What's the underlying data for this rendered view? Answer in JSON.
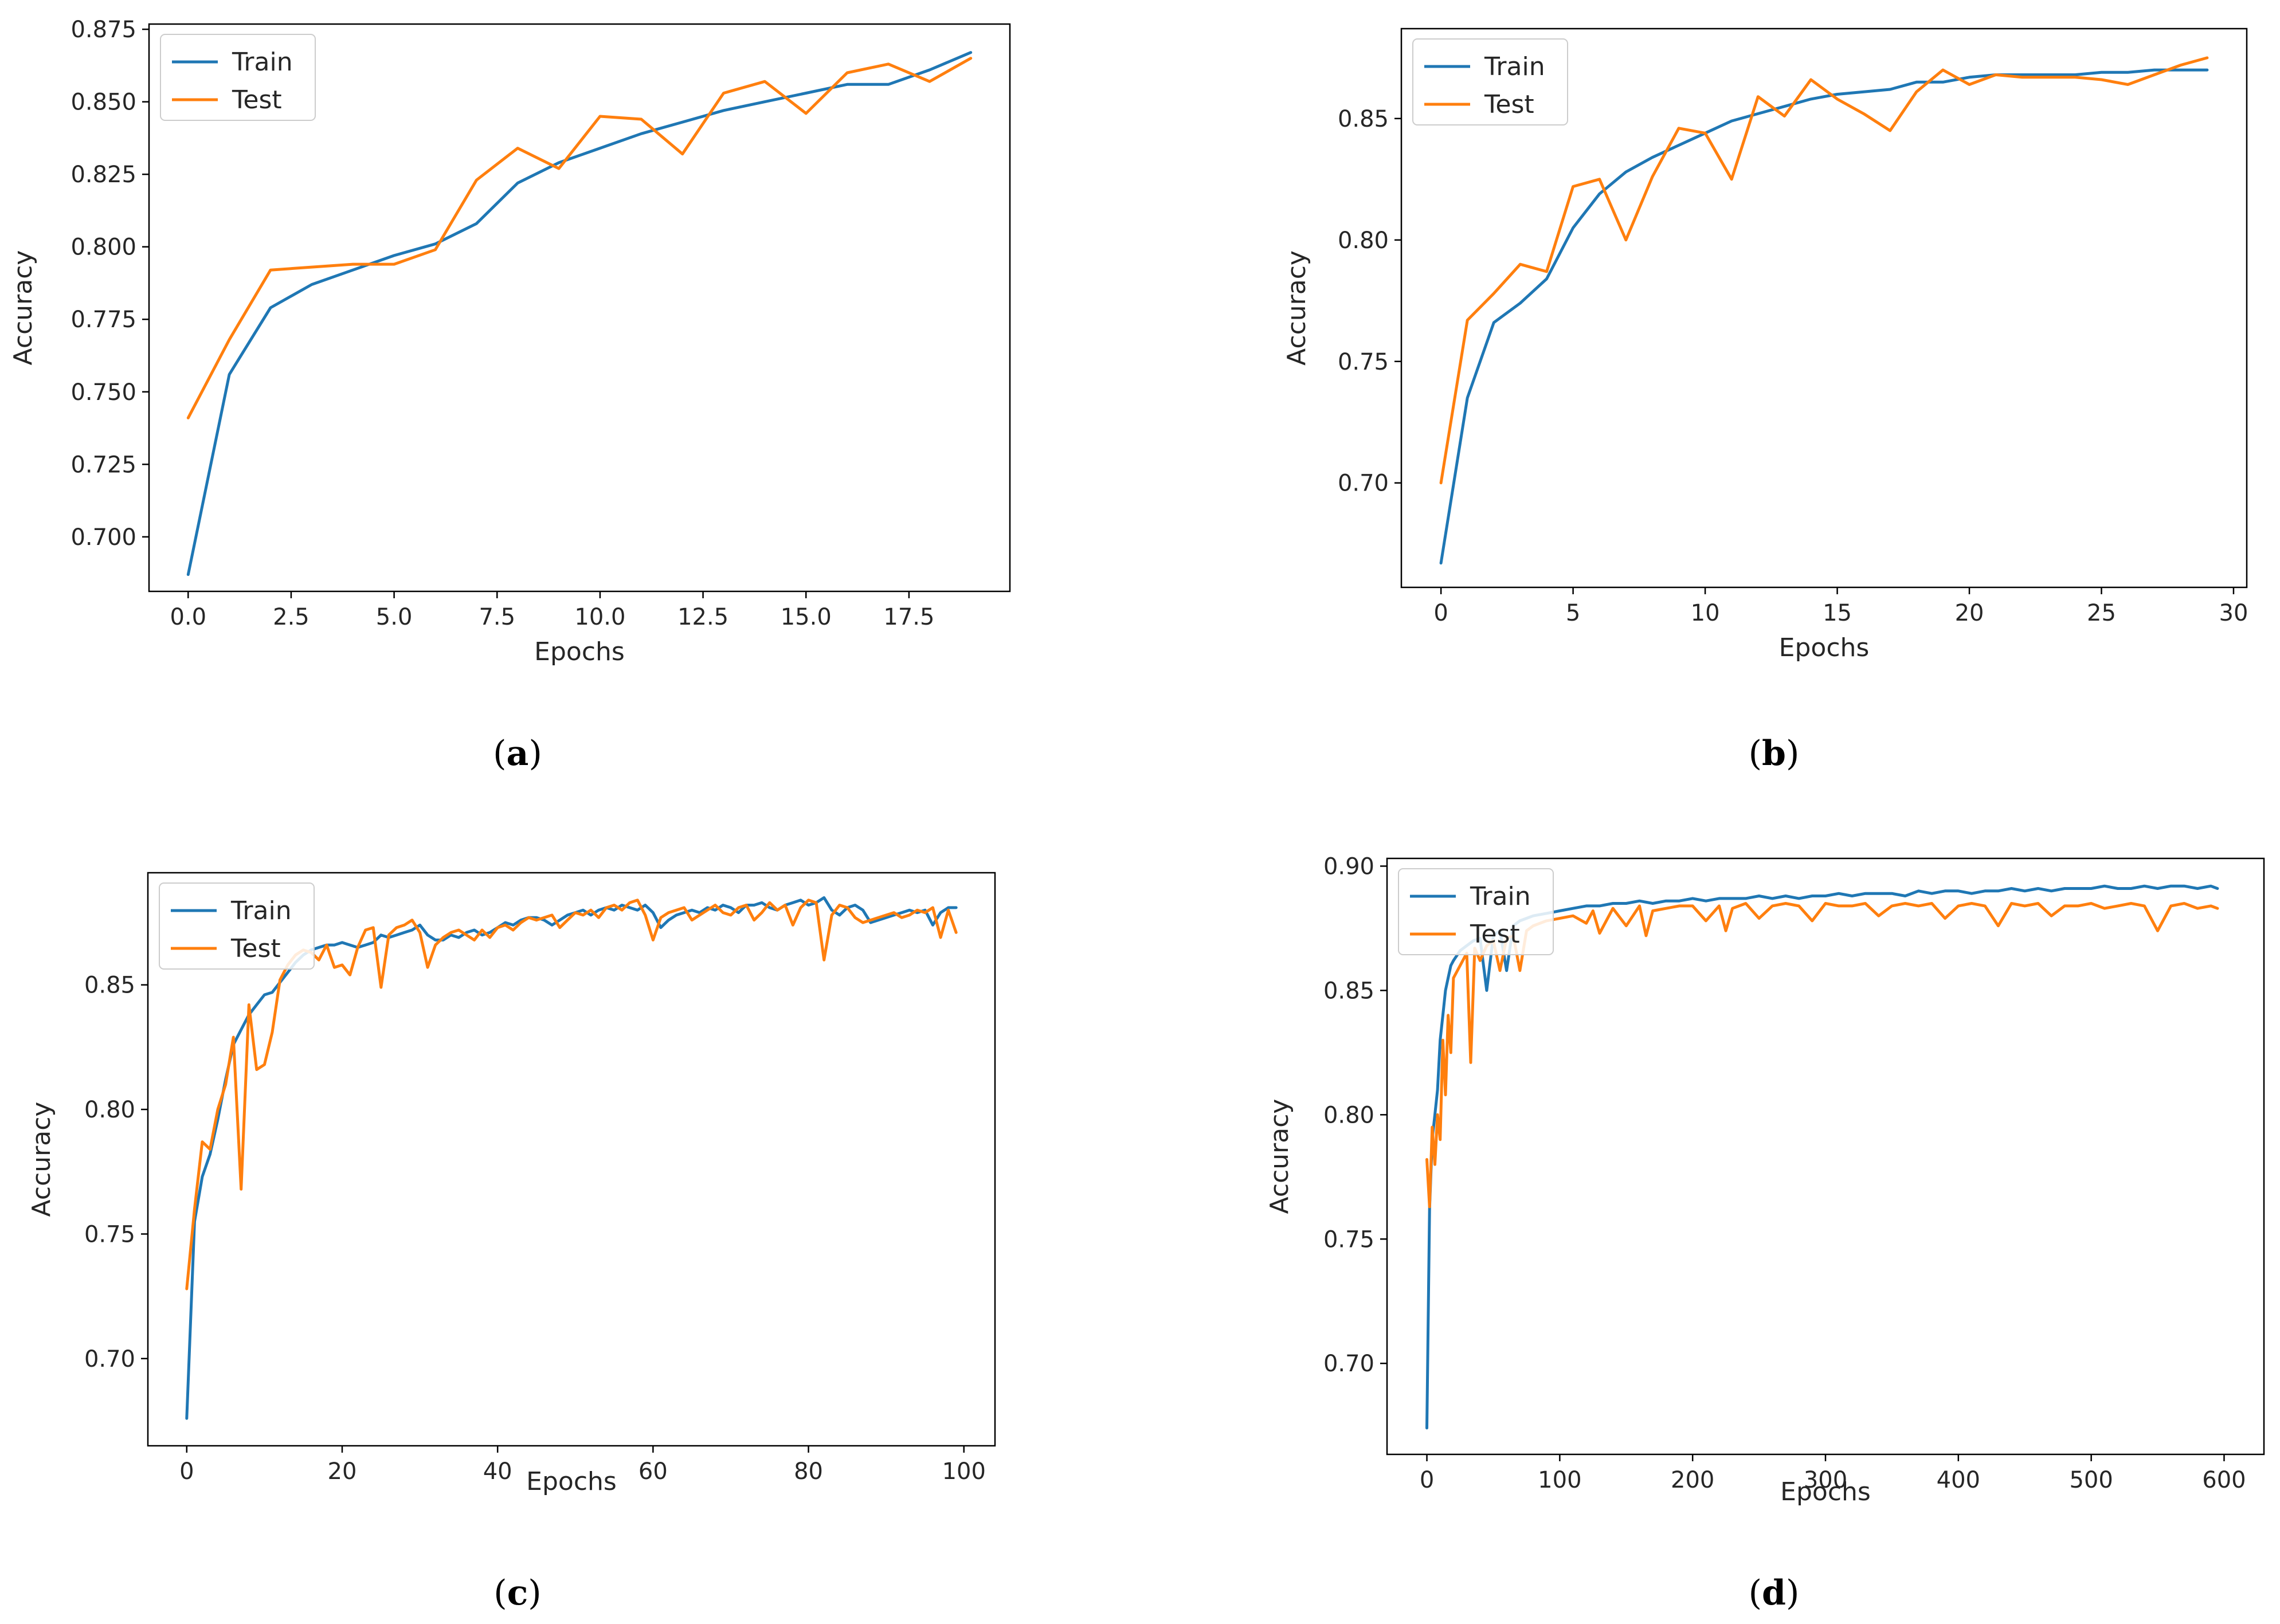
{
  "colors": {
    "train": "#1f77b4",
    "test": "#ff7f0e"
  },
  "chart_data": [
    {
      "id": "a",
      "caption": "a",
      "type": "line",
      "xlabel": "Epochs",
      "ylabel": "Accuracy",
      "xlim": [
        -0.95,
        19.95
      ],
      "ylim": [
        0.6812,
        0.8768
      ],
      "xticks": [
        0.0,
        2.5,
        5.0,
        7.5,
        10.0,
        12.5,
        15.0,
        17.5
      ],
      "xtick_labels": [
        "0.0",
        "2.5",
        "5.0",
        "7.5",
        "10.0",
        "12.5",
        "15.0",
        "17.5"
      ],
      "yticks": [
        0.7,
        0.725,
        0.75,
        0.775,
        0.8,
        0.825,
        0.85,
        0.875
      ],
      "ytick_labels": [
        "0.700",
        "0.725",
        "0.750",
        "0.775",
        "0.800",
        "0.825",
        "0.850",
        "0.875"
      ],
      "legend_placement": "upper-left",
      "series": [
        {
          "name": "Train",
          "color_key": "train",
          "values": [
            0.687,
            0.756,
            0.779,
            0.787,
            0.792,
            0.797,
            0.801,
            0.808,
            0.822,
            0.829,
            0.834,
            0.839,
            0.843,
            0.847,
            0.85,
            0.853,
            0.856,
            0.856,
            0.861,
            0.867
          ]
        },
        {
          "name": "Test",
          "color_key": "test",
          "values": [
            0.741,
            0.768,
            0.792,
            0.793,
            0.794,
            0.794,
            0.799,
            0.823,
            0.834,
            0.827,
            0.845,
            0.844,
            0.832,
            0.853,
            0.857,
            0.846,
            0.86,
            0.863,
            0.857,
            0.865
          ]
        }
      ]
    },
    {
      "id": "b",
      "caption": "b",
      "type": "line",
      "xlabel": "Epochs",
      "ylabel": "Accuracy",
      "xlim": [
        -1.5,
        30.5
      ],
      "ylim": [
        0.657,
        0.887
      ],
      "xticks": [
        0,
        5,
        10,
        15,
        20,
        25,
        30
      ],
      "xtick_labels": [
        "0",
        "5",
        "10",
        "15",
        "20",
        "25",
        "30"
      ],
      "yticks": [
        0.7,
        0.75,
        0.8,
        0.85
      ],
      "ytick_labels": [
        "0.70",
        "0.75",
        "0.80",
        "0.85"
      ],
      "legend_placement": "upper-left",
      "series": [
        {
          "name": "Train",
          "color_key": "train",
          "values": [
            0.667,
            0.735,
            0.766,
            0.774,
            0.784,
            0.805,
            0.819,
            0.828,
            0.834,
            0.839,
            0.844,
            0.849,
            0.852,
            0.855,
            0.858,
            0.86,
            0.861,
            0.862,
            0.865,
            0.865,
            0.867,
            0.868,
            0.868,
            0.868,
            0.868,
            0.869,
            0.869,
            0.87,
            0.87,
            0.87
          ]
        },
        {
          "name": "Test",
          "color_key": "test",
          "values": [
            0.7,
            0.767,
            0.778,
            0.79,
            0.787,
            0.822,
            0.825,
            0.8,
            0.826,
            0.846,
            0.844,
            0.825,
            0.859,
            0.851,
            0.866,
            0.858,
            0.852,
            0.845,
            0.861,
            0.87,
            0.864,
            0.868,
            0.867,
            0.867,
            0.867,
            0.866,
            0.864,
            0.868,
            0.872,
            0.875
          ]
        }
      ]
    },
    {
      "id": "c",
      "caption": "c",
      "type": "line",
      "xlabel": "Epochs",
      "ylabel": "Accuracy",
      "xlim": [
        -5,
        104
      ],
      "ylim": [
        0.665,
        0.895
      ],
      "xticks": [
        0,
        20,
        40,
        60,
        80,
        100
      ],
      "xtick_labels": [
        "0",
        "20",
        "40",
        "60",
        "80",
        "100"
      ],
      "yticks": [
        0.7,
        0.75,
        0.8,
        0.85
      ],
      "ytick_labels": [
        "0.70",
        "0.75",
        "0.80",
        "0.85"
      ],
      "legend_placement": "upper-left",
      "series": [
        {
          "name": "Train",
          "color_key": "train",
          "values": [
            0.676,
            0.755,
            0.773,
            0.782,
            0.796,
            0.812,
            0.826,
            0.832,
            0.838,
            0.842,
            0.846,
            0.847,
            0.851,
            0.855,
            0.859,
            0.862,
            0.864,
            0.865,
            0.866,
            0.866,
            0.867,
            0.866,
            0.865,
            0.866,
            0.867,
            0.87,
            0.869,
            0.87,
            0.871,
            0.872,
            0.874,
            0.87,
            0.868,
            0.868,
            0.87,
            0.869,
            0.871,
            0.872,
            0.87,
            0.871,
            0.873,
            0.875,
            0.874,
            0.876,
            0.877,
            0.877,
            0.876,
            0.874,
            0.876,
            0.878,
            0.879,
            0.88,
            0.878,
            0.88,
            0.881,
            0.88,
            0.882,
            0.881,
            0.88,
            0.882,
            0.879,
            0.873,
            0.876,
            0.878,
            0.879,
            0.88,
            0.879,
            0.881,
            0.88,
            0.882,
            0.881,
            0.879,
            0.882,
            0.882,
            0.883,
            0.881,
            0.88,
            0.882,
            0.883,
            0.884,
            0.882,
            0.883,
            0.885,
            0.88,
            0.878,
            0.881,
            0.882,
            0.88,
            0.875,
            0.876,
            0.877,
            0.878,
            0.879,
            0.88,
            0.879,
            0.88,
            0.874,
            0.879,
            0.881,
            0.881
          ]
        },
        {
          "name": "Test",
          "color_key": "test",
          "values": [
            0.728,
            0.76,
            0.787,
            0.784,
            0.8,
            0.81,
            0.829,
            0.768,
            0.842,
            0.816,
            0.818,
            0.831,
            0.852,
            0.858,
            0.862,
            0.864,
            0.863,
            0.86,
            0.866,
            0.857,
            0.858,
            0.854,
            0.865,
            0.872,
            0.873,
            0.849,
            0.87,
            0.873,
            0.874,
            0.876,
            0.871,
            0.857,
            0.866,
            0.869,
            0.871,
            0.872,
            0.87,
            0.868,
            0.872,
            0.869,
            0.873,
            0.874,
            0.872,
            0.875,
            0.877,
            0.876,
            0.877,
            0.878,
            0.873,
            0.876,
            0.879,
            0.878,
            0.88,
            0.877,
            0.881,
            0.882,
            0.88,
            0.883,
            0.884,
            0.878,
            0.868,
            0.877,
            0.879,
            0.88,
            0.881,
            0.876,
            0.878,
            0.88,
            0.882,
            0.879,
            0.878,
            0.881,
            0.882,
            0.876,
            0.879,
            0.883,
            0.88,
            0.882,
            0.874,
            0.881,
            0.884,
            0.883,
            0.86,
            0.878,
            0.882,
            0.881,
            0.877,
            0.875,
            0.876,
            0.877,
            0.878,
            0.879,
            0.877,
            0.878,
            0.88,
            0.879,
            0.881,
            0.869,
            0.88,
            0.871
          ]
        }
      ]
    },
    {
      "id": "d",
      "caption": "d",
      "type": "line",
      "xlabel": "Epochs",
      "ylabel": "Accuracy",
      "xlim": [
        -30,
        630
      ],
      "ylim": [
        0.6634,
        0.9031
      ],
      "xticks": [
        0,
        100,
        200,
        300,
        400,
        500,
        600
      ],
      "xtick_labels": [
        "0",
        "100",
        "200",
        "300",
        "400",
        "500",
        "600"
      ],
      "yticks": [
        0.7,
        0.75,
        0.8,
        0.85,
        0.9
      ],
      "ytick_labels": [
        "0.70",
        "0.75",
        "0.80",
        "0.85",
        "0.90"
      ],
      "legend_placement": "upper-left",
      "series": [
        {
          "name": "Train",
          "color_key": "train",
          "x": [
            0,
            2,
            4,
            6,
            8,
            10,
            12,
            14,
            16,
            18,
            20,
            25,
            30,
            35,
            40,
            45,
            50,
            55,
            60,
            65,
            70,
            80,
            90,
            100,
            110,
            120,
            130,
            140,
            150,
            160,
            170,
            180,
            190,
            200,
            210,
            220,
            230,
            240,
            250,
            260,
            270,
            280,
            290,
            300,
            310,
            320,
            330,
            340,
            350,
            360,
            370,
            380,
            390,
            400,
            410,
            420,
            430,
            440,
            450,
            460,
            470,
            480,
            490,
            500,
            510,
            520,
            530,
            540,
            550,
            560,
            570,
            580,
            590,
            595
          ],
          "values": [
            0.674,
            0.762,
            0.79,
            0.8,
            0.81,
            0.83,
            0.84,
            0.85,
            0.855,
            0.86,
            0.862,
            0.866,
            0.868,
            0.87,
            0.871,
            0.85,
            0.872,
            0.874,
            0.858,
            0.876,
            0.878,
            0.88,
            0.881,
            0.882,
            0.883,
            0.884,
            0.884,
            0.885,
            0.885,
            0.886,
            0.885,
            0.886,
            0.886,
            0.887,
            0.886,
            0.887,
            0.887,
            0.887,
            0.888,
            0.887,
            0.888,
            0.887,
            0.888,
            0.888,
            0.889,
            0.888,
            0.889,
            0.889,
            0.889,
            0.888,
            0.89,
            0.889,
            0.89,
            0.89,
            0.889,
            0.89,
            0.89,
            0.891,
            0.89,
            0.891,
            0.89,
            0.891,
            0.891,
            0.891,
            0.892,
            0.891,
            0.891,
            0.892,
            0.891,
            0.892,
            0.892,
            0.891,
            0.892,
            0.891
          ]
        },
        {
          "name": "Test",
          "color_key": "test",
          "x": [
            0,
            2,
            4,
            6,
            8,
            10,
            12,
            14,
            16,
            18,
            20,
            25,
            30,
            33,
            36,
            40,
            45,
            50,
            55,
            60,
            65,
            70,
            75,
            80,
            90,
            100,
            110,
            120,
            125,
            130,
            140,
            150,
            160,
            165,
            170,
            180,
            190,
            200,
            210,
            220,
            225,
            230,
            240,
            250,
            260,
            270,
            280,
            290,
            300,
            310,
            320,
            330,
            340,
            350,
            360,
            370,
            380,
            390,
            400,
            410,
            420,
            430,
            440,
            450,
            460,
            470,
            480,
            490,
            500,
            510,
            520,
            530,
            540,
            550,
            560,
            570,
            580,
            590,
            595
          ],
          "values": [
            0.782,
            0.763,
            0.795,
            0.78,
            0.8,
            0.79,
            0.83,
            0.808,
            0.84,
            0.825,
            0.855,
            0.86,
            0.865,
            0.821,
            0.867,
            0.862,
            0.868,
            0.87,
            0.858,
            0.871,
            0.872,
            0.858,
            0.874,
            0.876,
            0.878,
            0.879,
            0.88,
            0.877,
            0.882,
            0.873,
            0.883,
            0.876,
            0.884,
            0.872,
            0.882,
            0.883,
            0.884,
            0.884,
            0.878,
            0.884,
            0.874,
            0.883,
            0.885,
            0.879,
            0.884,
            0.885,
            0.884,
            0.878,
            0.885,
            0.884,
            0.884,
            0.885,
            0.88,
            0.884,
            0.885,
            0.884,
            0.885,
            0.879,
            0.884,
            0.885,
            0.884,
            0.876,
            0.885,
            0.884,
            0.885,
            0.88,
            0.884,
            0.884,
            0.885,
            0.883,
            0.884,
            0.885,
            0.884,
            0.874,
            0.884,
            0.885,
            0.883,
            0.884,
            0.883
          ]
        }
      ]
    }
  ]
}
